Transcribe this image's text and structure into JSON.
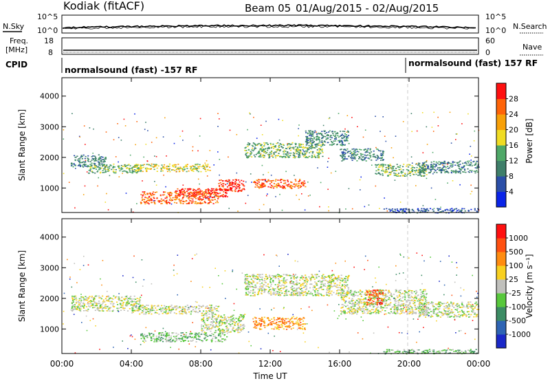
{
  "header": {
    "station": "Kodiak (fitACF)",
    "beam": "Beam 05",
    "date_range": "01/Aug/2015 - 02/Aug/2015"
  },
  "top_panels": {
    "nsky_label": "N.Sky",
    "nsky_ticks": [
      "10^5",
      "10^0"
    ],
    "nsearch_label": "N.Search",
    "nsearch_ticks": [
      "10^5",
      "10^0"
    ],
    "freq_label_1": "Freq.",
    "freq_label_2": "[MHz]",
    "freq_ticks": [
      "18",
      "8"
    ],
    "nave_label": "Nave",
    "nave_ticks": [
      "60",
      "0"
    ],
    "cpid_label": "CPID",
    "cpid_1": "normalsound (fast) -157 RF",
    "cpid_2": "normalsound (fast) 157 RF"
  },
  "chart_data": [
    {
      "type": "heatmap",
      "panel": "power",
      "ylabel": "Slant Range [km]",
      "ylim": [
        200,
        4600
      ],
      "yticks": [
        "1000",
        "2000",
        "3000",
        "4000"
      ],
      "xlim": [
        0,
        24
      ],
      "colorbar_label": "Power [dB]",
      "colorbar_ticks": [
        "4",
        "8",
        "12",
        "16",
        "20",
        "24",
        "28"
      ],
      "colors": [
        "#0a24e8",
        "#2b4fa8",
        "#3f7f6a",
        "#4fa868",
        "#f0dc24",
        "#f8a008",
        "#ff6408",
        "#ff1010"
      ],
      "scatter_bands": [
        {
          "t0": 0.5,
          "t1": 2.5,
          "r0": 1700,
          "r1": 2100,
          "level": 2
        },
        {
          "t0": 1.5,
          "t1": 4.5,
          "r0": 1500,
          "r1": 1800,
          "level": 3
        },
        {
          "t0": 4.0,
          "t1": 8.5,
          "r0": 1550,
          "r1": 1800,
          "level": 4
        },
        {
          "t0": 4.5,
          "t1": 9.0,
          "r0": 500,
          "r1": 900,
          "level": 6
        },
        {
          "t0": 6.5,
          "t1": 9.5,
          "r0": 700,
          "r1": 1000,
          "level": 7
        },
        {
          "t0": 9.0,
          "t1": 10.5,
          "r0": 900,
          "r1": 1300,
          "level": 7
        },
        {
          "t0": 11.0,
          "t1": 14.0,
          "r0": 1000,
          "r1": 1300,
          "level": 6
        },
        {
          "t0": 10.5,
          "t1": 15.0,
          "r0": 2000,
          "r1": 2500,
          "level": 3
        },
        {
          "t0": 14.0,
          "t1": 16.5,
          "r0": 2400,
          "r1": 2900,
          "level": 2
        },
        {
          "t0": 16.0,
          "t1": 18.5,
          "r0": 1900,
          "r1": 2300,
          "level": 2
        },
        {
          "t0": 18.0,
          "t1": 21.0,
          "r0": 1400,
          "r1": 1800,
          "level": 3
        },
        {
          "t0": 20.5,
          "t1": 24.0,
          "r0": 1500,
          "r1": 1900,
          "level": 2
        },
        {
          "t0": 18.5,
          "t1": 24.0,
          "r0": 200,
          "r1": 350,
          "level": 1
        }
      ]
    },
    {
      "type": "heatmap",
      "panel": "velocity",
      "ylabel": "Slant Range [km]",
      "ylim": [
        200,
        4600
      ],
      "yticks": [
        "1000",
        "2000",
        "3000",
        "4000"
      ],
      "xlim": [
        0,
        24
      ],
      "xticks": [
        "00:00",
        "04:00",
        "08:00",
        "12:00",
        "16:00",
        "20:00",
        "00:00"
      ],
      "xlabel": "Time UT",
      "colorbar_label": "Velocity [m s⁻¹]",
      "colorbar_ticks": [
        "1000",
        "500",
        "100",
        "25",
        "-25",
        "-100",
        "-500",
        "-1000"
      ],
      "colors": [
        "#1a28c8",
        "#2e64b4",
        "#3c8c64",
        "#58c83c",
        "#c0c0bc",
        "#f8d020",
        "#ff8c10",
        "#ff5010",
        "#ff1010"
      ],
      "scatter_bands": [
        {
          "t0": 0.5,
          "t1": 4.5,
          "r0": 1600,
          "r1": 2100,
          "level": 4
        },
        {
          "t0": 4.0,
          "t1": 9.0,
          "r0": 1500,
          "r1": 1800,
          "level": 4
        },
        {
          "t0": 4.5,
          "t1": 9.5,
          "r0": 600,
          "r1": 900,
          "level": 3
        },
        {
          "t0": 8.0,
          "t1": 10.5,
          "r0": 900,
          "r1": 1500,
          "level": 4
        },
        {
          "t0": 11.0,
          "t1": 14.0,
          "r0": 1000,
          "r1": 1400,
          "level": 6
        },
        {
          "t0": 10.5,
          "t1": 16.5,
          "r0": 2100,
          "r1": 2800,
          "level": 4
        },
        {
          "t0": 16.0,
          "t1": 21.0,
          "r0": 1500,
          "r1": 2300,
          "level": 4
        },
        {
          "t0": 17.5,
          "t1": 18.5,
          "r0": 1800,
          "r1": 2300,
          "level": 7
        },
        {
          "t0": 20.5,
          "t1": 24.0,
          "r0": 1400,
          "r1": 1900,
          "level": 4
        },
        {
          "t0": 18.5,
          "t1": 24.0,
          "r0": 200,
          "r1": 350,
          "level": 3
        }
      ]
    }
  ]
}
